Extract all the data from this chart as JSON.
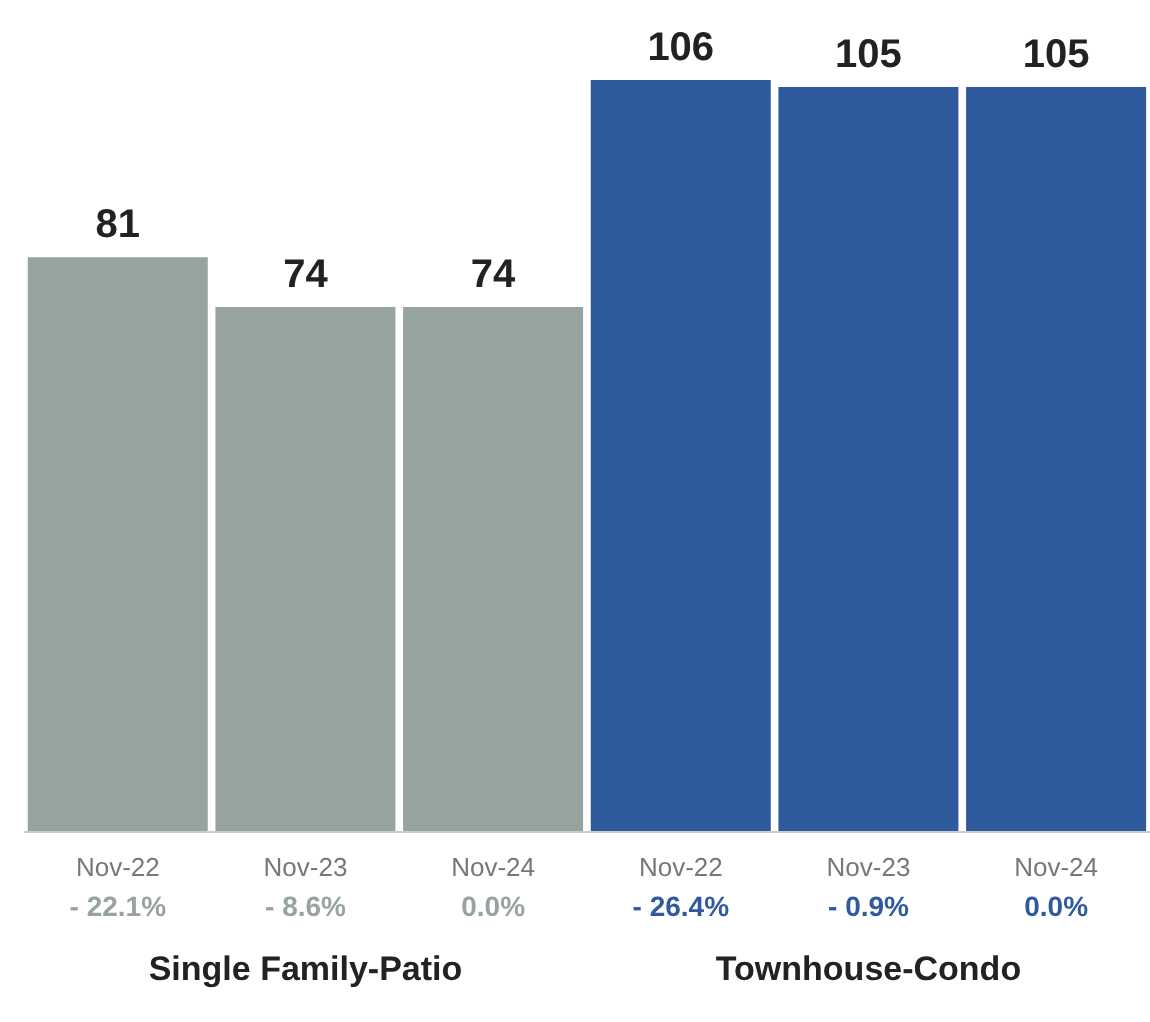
{
  "chart_data": {
    "type": "bar",
    "stacked": true,
    "data_labels": true,
    "categories": [
      "Nov-22",
      "Nov-23",
      "Nov-24",
      "Nov-22",
      "Nov-23",
      "Nov-24"
    ],
    "series": [
      {
        "color": "#97a39f",
        "values": [
          81,
          74,
          74,
          null,
          null,
          null
        ]
      },
      {
        "color": "#2f5a9e",
        "values": [
          null,
          null,
          null,
          106,
          105,
          105
        ]
      }
    ],
    "annotations": [
      "- 22.1%",
      "- 8.6%",
      "0.0%",
      "- 26.4%",
      "- 0.9%",
      "0.0%",
      "Single Family-Patio",
      "Townhouse-Condo"
    ]
  }
}
